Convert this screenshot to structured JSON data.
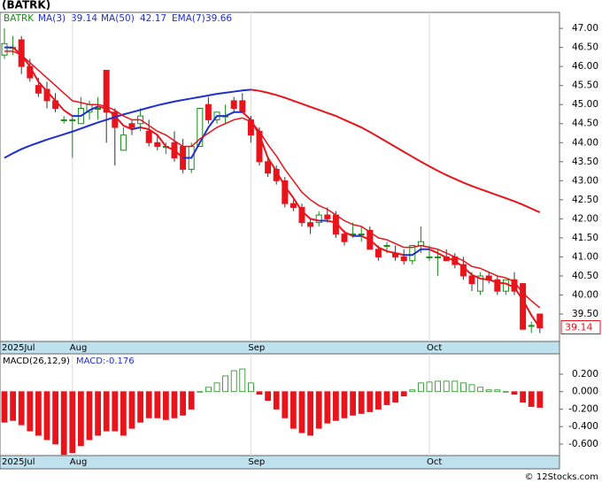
{
  "title": "(BATRK)",
  "footer": "© 12Stocks.com",
  "chart_data": [
    {
      "type": "candlestick",
      "symbol": "BATRK",
      "categories": [
        "2025Jul",
        null,
        null,
        null,
        null,
        null,
        null,
        null,
        "Aug",
        null,
        null,
        null,
        null,
        null,
        null,
        null,
        null,
        null,
        null,
        null,
        null,
        null,
        null,
        null,
        null,
        null,
        null,
        null,
        null,
        "Sep",
        null,
        null,
        null,
        null,
        null,
        null,
        null,
        null,
        null,
        null,
        null,
        null,
        null,
        null,
        null,
        null,
        null,
        null,
        null,
        null,
        "Oct",
        null,
        null,
        null,
        null,
        null,
        null,
        null,
        null,
        null,
        null,
        null,
        null,
        null
      ],
      "open": [
        46.3,
        46.5,
        46.7,
        46.0,
        45.5,
        45.4,
        45.1,
        44.6,
        44.6,
        44.5,
        44.8,
        44.9,
        45.9,
        44.8,
        43.8,
        44.5,
        44.5,
        44.3,
        44.0,
        43.9,
        44.0,
        43.9,
        43.3,
        43.9,
        45.0,
        44.6,
        44.7,
        45.1,
        45.1,
        44.6,
        44.3,
        43.5,
        43.3,
        43.0,
        42.4,
        42.3,
        41.9,
        41.9,
        42.1,
        42.1,
        41.6,
        41.6,
        41.6,
        41.7,
        41.2,
        41.3,
        41.1,
        41.0,
        40.9,
        41.3,
        41.0,
        41.0,
        41.0,
        41.0,
        40.8,
        40.5,
        40.1,
        40.5,
        40.4,
        40.1,
        40.4,
        40.3,
        39.2,
        39.5
      ],
      "high": [
        47.0,
        46.8,
        46.8,
        46.2,
        45.7,
        45.6,
        45.3,
        44.7,
        44.7,
        45.2,
        45.1,
        45.2,
        45.9,
        44.9,
        44.4,
        44.6,
        44.9,
        44.6,
        44.2,
        44.0,
        44.3,
        44.1,
        44.0,
        44.9,
        45.2,
        44.8,
        45.0,
        45.2,
        45.3,
        44.7,
        44.4,
        43.6,
        43.4,
        43.1,
        42.5,
        42.4,
        42.0,
        42.2,
        42.3,
        42.2,
        41.7,
        41.9,
        41.8,
        41.8,
        41.3,
        41.4,
        41.3,
        41.2,
        41.3,
        41.8,
        41.3,
        41.2,
        41.2,
        41.1,
        41.0,
        40.6,
        40.6,
        40.6,
        40.5,
        40.4,
        40.6,
        40.3,
        39.3,
        39.5
      ],
      "low": [
        46.2,
        46.3,
        45.8,
        45.6,
        45.2,
        44.9,
        44.8,
        44.5,
        43.6,
        44.5,
        44.6,
        44.6,
        44.0,
        43.4,
        43.8,
        44.2,
        44.3,
        43.9,
        43.8,
        43.7,
        43.5,
        43.2,
        43.2,
        43.9,
        44.5,
        44.5,
        44.5,
        44.8,
        44.8,
        44.0,
        43.4,
        43.1,
        42.9,
        42.3,
        42.2,
        41.8,
        41.6,
        41.8,
        41.9,
        41.5,
        41.3,
        41.5,
        41.4,
        41.2,
        40.9,
        41.1,
        40.9,
        40.8,
        40.8,
        41.1,
        40.9,
        40.5,
        40.9,
        40.7,
        40.4,
        40.1,
        40.0,
        40.3,
        40.0,
        40.0,
        40.0,
        39.1,
        39.0,
        39.0
      ],
      "close": [
        46.6,
        46.5,
        46.0,
        45.7,
        45.3,
        45.1,
        44.9,
        44.6,
        44.6,
        44.9,
        45.0,
        44.9,
        44.8,
        44.4,
        44.2,
        44.4,
        44.7,
        44.0,
        43.9,
        43.9,
        43.6,
        43.3,
        43.9,
        44.9,
        44.6,
        44.8,
        44.7,
        44.9,
        44.8,
        44.2,
        43.5,
        43.2,
        43.0,
        42.4,
        42.3,
        41.9,
        41.8,
        42.1,
        42.0,
        41.6,
        41.4,
        41.6,
        41.6,
        41.2,
        41.0,
        41.3,
        41.0,
        40.9,
        41.3,
        41.4,
        41.0,
        41.0,
        40.9,
        40.8,
        40.5,
        40.3,
        40.5,
        40.4,
        40.1,
        40.4,
        40.1,
        39.1,
        39.2,
        39.14
      ],
      "up_color": "#1a8a1a",
      "down_color": "#e8141c",
      "series": [
        {
          "name": "MA(3)",
          "up_color": "#1f2fd0",
          "down_color": "#e8141c",
          "values": [
            46.5,
            46.5,
            46.3,
            46.0,
            45.6,
            45.35,
            45.1,
            44.85,
            44.7,
            44.7,
            44.85,
            44.95,
            44.9,
            44.7,
            44.45,
            44.35,
            44.4,
            44.35,
            44.2,
            43.9,
            43.8,
            43.6,
            43.6,
            44.0,
            44.4,
            44.7,
            44.7,
            44.8,
            44.8,
            44.6,
            44.2,
            43.6,
            43.25,
            42.85,
            42.55,
            42.2,
            42.0,
            41.95,
            41.95,
            41.9,
            41.65,
            41.55,
            41.55,
            41.45,
            41.25,
            41.15,
            41.1,
            41.05,
            41.05,
            41.2,
            41.2,
            41.1,
            40.98,
            40.9,
            40.73,
            40.53,
            40.43,
            40.4,
            40.33,
            40.3,
            40.2,
            39.87,
            39.47,
            39.14
          ]
        },
        {
          "name": "MA(50)",
          "up_color": "#1f2fd0",
          "down_color": "#e8141c",
          "values": [
            43.6,
            43.72,
            43.83,
            43.92,
            44.0,
            44.08,
            44.15,
            44.22,
            44.29,
            44.37,
            44.45,
            44.53,
            44.6,
            44.67,
            44.74,
            44.8,
            44.86,
            44.92,
            44.98,
            45.03,
            45.08,
            45.12,
            45.16,
            45.2,
            45.24,
            45.28,
            45.31,
            45.34,
            45.37,
            45.39,
            45.36,
            45.31,
            45.25,
            45.18,
            45.1,
            45.02,
            44.94,
            44.86,
            44.78,
            44.7,
            44.6,
            44.5,
            44.4,
            44.28,
            44.15,
            44.02,
            43.89,
            43.76,
            43.63,
            43.5,
            43.38,
            43.26,
            43.15,
            43.05,
            42.95,
            42.86,
            42.78,
            42.7,
            42.62,
            42.54,
            42.46,
            42.37,
            42.27,
            42.17
          ]
        },
        {
          "name": "EMA(7)",
          "up_color": "#e8141c",
          "down_color": "#e8141c",
          "values": [
            46.4,
            46.4,
            46.3,
            46.1,
            45.9,
            45.7,
            45.5,
            45.3,
            45.1,
            45.05,
            45.0,
            45.0,
            44.95,
            44.85,
            44.7,
            44.6,
            44.6,
            44.45,
            44.3,
            44.2,
            44.05,
            43.9,
            43.9,
            44.1,
            44.25,
            44.4,
            44.5,
            44.6,
            44.65,
            44.55,
            44.3,
            43.95,
            43.65,
            43.3,
            43.0,
            42.7,
            42.5,
            42.35,
            42.25,
            42.1,
            41.95,
            41.85,
            41.8,
            41.65,
            41.5,
            41.45,
            41.35,
            41.25,
            41.25,
            41.3,
            41.25,
            41.2,
            41.1,
            41.0,
            40.9,
            40.75,
            40.7,
            40.6,
            40.5,
            40.45,
            40.35,
            40.05,
            39.85,
            39.66
          ]
        }
      ],
      "ylim": [
        38.78,
        47.42
      ],
      "yticks": [
        {
          "value": 39.5,
          "label": "39.50"
        },
        {
          "value": 40,
          "label": "40.00"
        },
        {
          "value": 40.5,
          "label": "40.50"
        },
        {
          "value": 41,
          "label": "41.00"
        },
        {
          "value": 41.5,
          "label": "41.50"
        },
        {
          "value": 42,
          "label": "42.00"
        },
        {
          "value": 42.5,
          "label": "42.50"
        },
        {
          "value": 43,
          "label": "43.00"
        },
        {
          "value": 43.5,
          "label": "43.50"
        },
        {
          "value": 44,
          "label": "44.00"
        },
        {
          "value": 44.5,
          "label": "44.50"
        },
        {
          "value": 45,
          "label": "45.00"
        },
        {
          "value": 45.5,
          "label": "45.50"
        },
        {
          "value": 46,
          "label": "46.00"
        },
        {
          "value": 46.5,
          "label": "46.50"
        },
        {
          "value": 47,
          "label": "47.00"
        }
      ]
    },
    {
      "type": "bar",
      "title": "MACD(26,12,9)",
      "subtitle": "MACD:-0.176",
      "values": [
        -0.35,
        -0.33,
        -0.38,
        -0.45,
        -0.5,
        -0.55,
        -0.6,
        -0.72,
        -0.7,
        -0.62,
        -0.55,
        -0.5,
        -0.45,
        -0.45,
        -0.5,
        -0.42,
        -0.35,
        -0.3,
        -0.3,
        -0.32,
        -0.3,
        -0.27,
        -0.2,
        0.0,
        0.05,
        0.1,
        0.18,
        0.24,
        0.26,
        0.1,
        -0.03,
        -0.1,
        -0.2,
        -0.3,
        -0.42,
        -0.47,
        -0.5,
        -0.42,
        -0.36,
        -0.33,
        -0.3,
        -0.27,
        -0.25,
        -0.23,
        -0.2,
        -0.15,
        -0.12,
        -0.05,
        0.02,
        0.1,
        0.11,
        0.12,
        0.12,
        0.12,
        0.1,
        0.08,
        0.05,
        0.02,
        0.02,
        0.0,
        -0.03,
        -0.12,
        -0.17,
        -0.18
      ],
      "up_color": "#1a8a1a",
      "down_color": "#e8141c",
      "ylim": [
        -0.732,
        0.433
      ],
      "yticks": [
        {
          "value": 0.2,
          "label": "0.200"
        },
        {
          "value": 0,
          "label": "0.000"
        },
        {
          "value": -0.2,
          "label": "-0.200"
        },
        {
          "value": -0.4,
          "label": "-0.400"
        },
        {
          "value": -0.6,
          "label": "-0.600"
        }
      ]
    }
  ]
}
